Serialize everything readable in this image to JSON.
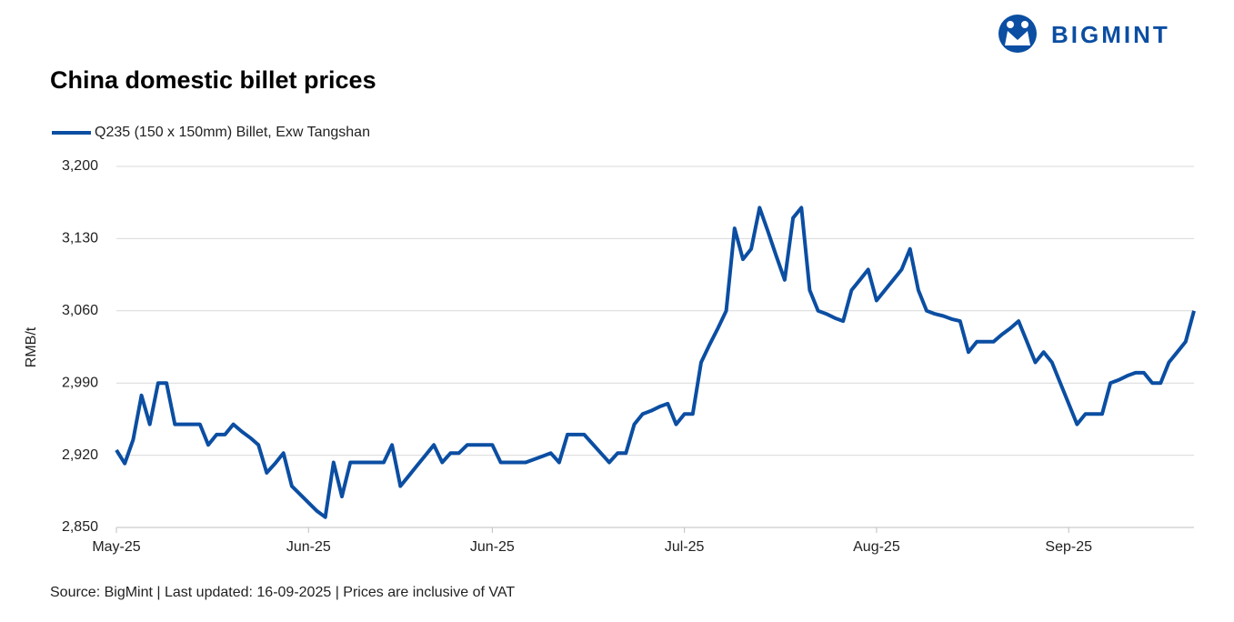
{
  "logo": "BIGMINT",
  "source": "Source: BigMint | Last updated: 16-09-2025 | Prices are inclusive of VAT",
  "chart_data": {
    "type": "line",
    "title": "China domestic billet prices",
    "y_label": "RMB/t",
    "categories": [
      "May-25",
      null,
      null,
      null,
      null,
      null,
      null,
      null,
      null,
      null,
      null,
      null,
      null,
      null,
      null,
      null,
      null,
      null,
      null,
      null,
      null,
      null,
      null,
      "Jun-25",
      null,
      null,
      null,
      null,
      null,
      null,
      null,
      null,
      null,
      null,
      null,
      null,
      null,
      null,
      null,
      null,
      null,
      null,
      null,
      null,
      null,
      "Jun-25",
      null,
      null,
      null,
      null,
      null,
      null,
      null,
      null,
      null,
      null,
      null,
      null,
      null,
      null,
      null,
      null,
      null,
      null,
      null,
      null,
      null,
      null,
      "Jul-25",
      null,
      null,
      null,
      null,
      null,
      null,
      null,
      null,
      null,
      null,
      null,
      null,
      null,
      null,
      null,
      null,
      null,
      null,
      null,
      null,
      null,
      null,
      "Aug-25",
      null,
      null,
      null,
      null,
      null,
      null,
      null,
      null,
      null,
      null,
      null,
      null,
      null,
      null,
      null,
      null,
      null,
      null,
      null,
      null,
      null,
      null,
      "Sep-25",
      null,
      null,
      null,
      null,
      null,
      null,
      null,
      null,
      null,
      null,
      null,
      null,
      null,
      null,
      null
    ],
    "series": [
      {
        "name": "Q235 (150 x 150mm) Billet, Exw Tangshan",
        "color": "#0b4ea2",
        "values": [
          2925,
          2912,
          2935,
          2978,
          2950,
          2990,
          2990,
          2950,
          2950,
          2950,
          2950,
          2930,
          2940,
          2940,
          2950,
          2943,
          2937,
          2930,
          2903,
          2912,
          2922,
          2890,
          2882,
          2874,
          2866,
          2860,
          2913,
          2880,
          2913,
          2913,
          2913,
          2913,
          2913,
          2930,
          2890,
          2900,
          2910,
          2920,
          2930,
          2913,
          2922,
          2922,
          2930,
          2930,
          2930,
          2930,
          2913,
          2913,
          2913,
          2913,
          2916,
          2919,
          2922,
          2913,
          2940,
          2940,
          2940,
          2931,
          2922,
          2913,
          2922,
          2922,
          2950,
          2960,
          2963,
          2967,
          2970,
          2950,
          2960,
          2960,
          3010,
          3027,
          3043,
          3060,
          3140,
          3110,
          3120,
          3160,
          3137,
          3113,
          3090,
          3150,
          3160,
          3080,
          3060,
          3057,
          3053,
          3050,
          3080,
          3090,
          3100,
          3070,
          3080,
          3090,
          3100,
          3120,
          3080,
          3060,
          3057,
          3055,
          3052,
          3050,
          3020,
          3030,
          3030,
          3030,
          3037,
          3043,
          3050,
          3030,
          3010,
          3020,
          3010,
          2990,
          2970,
          2950,
          2960,
          2960,
          2960,
          2990,
          2993,
          2997,
          3000,
          3000,
          2990,
          2990,
          3010,
          3020,
          3030,
          3060
        ]
      }
    ],
    "ylim": [
      2850,
      3200
    ],
    "yticks": [
      {
        "value": 2850,
        "label": "2,850"
      },
      {
        "value": 2920,
        "label": "2,920"
      },
      {
        "value": 2990,
        "label": "2,990"
      },
      {
        "value": 3060,
        "label": "3,060"
      },
      {
        "value": 3130,
        "label": "3,130"
      },
      {
        "value": 3200,
        "label": "3,200"
      }
    ],
    "grid": true,
    "legend": "top-left"
  }
}
